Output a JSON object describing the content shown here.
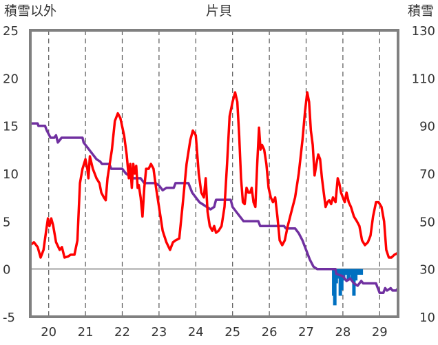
{
  "chart_data": {
    "type": "line",
    "title": "片貝",
    "left_axis_label": "積雪以外",
    "right_axis_label": "積雪",
    "x_ticks": [
      "20",
      "21",
      "22",
      "23",
      "24",
      "25",
      "26",
      "27",
      "28",
      "29"
    ],
    "x_range": [
      19.5,
      29.5
    ],
    "ylim_left": [
      -5,
      25
    ],
    "ylim_right": [
      10,
      130
    ],
    "yticks_left": [
      -5,
      0,
      5,
      10,
      15,
      20,
      25
    ],
    "yticks_right": [
      10,
      30,
      50,
      70,
      90,
      110,
      130
    ],
    "grid": "vertical dashed at each day",
    "colors": {
      "temperature": "#ff0000",
      "snow_depth": "#7030a0",
      "snowfall": "#0070c0",
      "frame": "#808080"
    },
    "series": [
      {
        "axis": "left",
        "color": "#ff0000",
        "points": [
          [
            19.5,
            2.5
          ],
          [
            19.6,
            2.8
          ],
          [
            19.7,
            2.3
          ],
          [
            19.78,
            1.2
          ],
          [
            19.86,
            2.0
          ],
          [
            19.93,
            4.0
          ],
          [
            19.98,
            5.3
          ],
          [
            20.02,
            4.5
          ],
          [
            20.07,
            5.3
          ],
          [
            20.12,
            4.6
          ],
          [
            20.2,
            2.8
          ],
          [
            20.3,
            2.0
          ],
          [
            20.36,
            2.3
          ],
          [
            20.43,
            1.2
          ],
          [
            20.52,
            1.3
          ],
          [
            20.6,
            1.5
          ],
          [
            20.7,
            1.5
          ],
          [
            20.78,
            3.0
          ],
          [
            20.85,
            9.0
          ],
          [
            20.92,
            10.5
          ],
          [
            21.0,
            11.5
          ],
          [
            21.05,
            10.5
          ],
          [
            21.08,
            9.5
          ],
          [
            21.12,
            11.8
          ],
          [
            21.2,
            10.5
          ],
          [
            21.3,
            9.5
          ],
          [
            21.38,
            9.0
          ],
          [
            21.43,
            8.0
          ],
          [
            21.5,
            7.5
          ],
          [
            21.55,
            7.2
          ],
          [
            21.6,
            9.5
          ],
          [
            21.66,
            11.0
          ],
          [
            21.72,
            12.5
          ],
          [
            21.8,
            15.5
          ],
          [
            21.88,
            16.3
          ],
          [
            21.95,
            15.8
          ],
          [
            22.05,
            14.0
          ],
          [
            22.12,
            12.0
          ],
          [
            22.18,
            9.5
          ],
          [
            22.22,
            11.0
          ],
          [
            22.26,
            8.5
          ],
          [
            22.3,
            11.0
          ],
          [
            22.34,
            10.0
          ],
          [
            22.38,
            10.8
          ],
          [
            22.42,
            8.5
          ],
          [
            22.45,
            8.8
          ],
          [
            22.5,
            7.5
          ],
          [
            22.55,
            5.5
          ],
          [
            22.6,
            8.5
          ],
          [
            22.65,
            10.5
          ],
          [
            22.72,
            10.5
          ],
          [
            22.78,
            11.0
          ],
          [
            22.85,
            10.5
          ],
          [
            22.92,
            8.5
          ],
          [
            23.0,
            6.5
          ],
          [
            23.1,
            4.0
          ],
          [
            23.2,
            2.8
          ],
          [
            23.3,
            2.0
          ],
          [
            23.38,
            2.8
          ],
          [
            23.45,
            3.0
          ],
          [
            23.55,
            3.2
          ],
          [
            23.65,
            7.0
          ],
          [
            23.75,
            11.0
          ],
          [
            23.85,
            13.5
          ],
          [
            23.92,
            14.5
          ],
          [
            24.0,
            14.0
          ],
          [
            24.08,
            10.0
          ],
          [
            24.15,
            8.0
          ],
          [
            24.22,
            7.5
          ],
          [
            24.27,
            9.5
          ],
          [
            24.32,
            6.0
          ],
          [
            24.38,
            4.5
          ],
          [
            24.45,
            4.0
          ],
          [
            24.5,
            4.5
          ],
          [
            24.55,
            3.8
          ],
          [
            24.62,
            4.0
          ],
          [
            24.7,
            4.5
          ],
          [
            24.78,
            6.5
          ],
          [
            24.85,
            11.0
          ],
          [
            24.92,
            16.0
          ],
          [
            25.0,
            17.5
          ],
          [
            25.07,
            18.5
          ],
          [
            25.13,
            17.5
          ],
          [
            25.18,
            14.0
          ],
          [
            25.23,
            9.5
          ],
          [
            25.28,
            7.0
          ],
          [
            25.33,
            6.8
          ],
          [
            25.38,
            8.5
          ],
          [
            25.43,
            8.0
          ],
          [
            25.48,
            8.0
          ],
          [
            25.52,
            8.5
          ],
          [
            25.57,
            7.0
          ],
          [
            25.62,
            6.5
          ],
          [
            25.67,
            11.0
          ],
          [
            25.72,
            14.8
          ],
          [
            25.76,
            12.5
          ],
          [
            25.8,
            13.0
          ],
          [
            25.86,
            12.5
          ],
          [
            25.92,
            11.0
          ],
          [
            25.98,
            8.5
          ],
          [
            26.04,
            7.5
          ],
          [
            26.1,
            7.0
          ],
          [
            26.16,
            7.5
          ],
          [
            26.22,
            5.5
          ],
          [
            26.28,
            3.0
          ],
          [
            26.35,
            2.5
          ],
          [
            26.42,
            3.0
          ],
          [
            26.5,
            4.5
          ],
          [
            26.6,
            6.0
          ],
          [
            26.7,
            7.5
          ],
          [
            26.8,
            10.0
          ],
          [
            26.9,
            13.5
          ],
          [
            26.97,
            16.5
          ],
          [
            27.03,
            18.5
          ],
          [
            27.08,
            17.5
          ],
          [
            27.13,
            14.5
          ],
          [
            27.18,
            13.0
          ],
          [
            27.23,
            9.8
          ],
          [
            27.28,
            11.0
          ],
          [
            27.33,
            12.0
          ],
          [
            27.38,
            11.5
          ],
          [
            27.43,
            9.5
          ],
          [
            27.48,
            8.0
          ],
          [
            27.53,
            6.5
          ],
          [
            27.58,
            7.0
          ],
          [
            27.63,
            7.2
          ],
          [
            27.68,
            6.8
          ],
          [
            27.73,
            7.5
          ],
          [
            27.8,
            7.0
          ],
          [
            27.86,
            9.5
          ],
          [
            27.9,
            9.0
          ],
          [
            27.95,
            8.0
          ],
          [
            28.0,
            7.5
          ],
          [
            28.05,
            7.0
          ],
          [
            28.1,
            8.0
          ],
          [
            28.16,
            7.0
          ],
          [
            28.22,
            6.5
          ],
          [
            28.3,
            5.5
          ],
          [
            28.38,
            5.0
          ],
          [
            28.45,
            4.5
          ],
          [
            28.52,
            3.0
          ],
          [
            28.6,
            2.5
          ],
          [
            28.68,
            2.8
          ],
          [
            28.75,
            3.5
          ],
          [
            28.82,
            5.5
          ],
          [
            28.9,
            7.0
          ],
          [
            28.97,
            7.0
          ],
          [
            29.05,
            6.5
          ],
          [
            29.12,
            5.0
          ],
          [
            29.18,
            2.0
          ],
          [
            29.25,
            1.2
          ],
          [
            29.32,
            1.2
          ],
          [
            29.4,
            1.5
          ],
          [
            29.5,
            1.7
          ]
        ]
      },
      {
        "axis": "right",
        "color": "#7030a0",
        "points": [
          [
            19.5,
            91
          ],
          [
            19.7,
            91
          ],
          [
            19.72,
            90
          ],
          [
            19.9,
            90
          ],
          [
            19.95,
            88
          ],
          [
            20.05,
            85
          ],
          [
            20.15,
            85
          ],
          [
            20.2,
            86
          ],
          [
            20.25,
            83
          ],
          [
            20.3,
            84
          ],
          [
            20.35,
            85
          ],
          [
            20.92,
            85
          ],
          [
            20.95,
            83
          ],
          [
            21.0,
            82
          ],
          [
            21.1,
            80
          ],
          [
            21.2,
            78
          ],
          [
            21.3,
            76
          ],
          [
            21.4,
            75
          ],
          [
            21.45,
            74
          ],
          [
            21.65,
            74
          ],
          [
            21.7,
            72
          ],
          [
            22.0,
            72
          ],
          [
            22.1,
            70
          ],
          [
            22.2,
            69
          ],
          [
            22.3,
            68
          ],
          [
            22.5,
            68
          ],
          [
            22.55,
            67
          ],
          [
            22.6,
            66
          ],
          [
            22.9,
            66
          ],
          [
            23.0,
            65
          ],
          [
            23.05,
            64
          ],
          [
            23.1,
            63
          ],
          [
            23.2,
            64
          ],
          [
            23.4,
            64
          ],
          [
            23.45,
            66
          ],
          [
            23.8,
            66
          ],
          [
            23.85,
            64
          ],
          [
            23.9,
            62
          ],
          [
            24.0,
            60
          ],
          [
            24.1,
            58
          ],
          [
            24.2,
            57
          ],
          [
            24.3,
            56
          ],
          [
            24.4,
            55
          ],
          [
            24.5,
            56
          ],
          [
            24.55,
            59
          ],
          [
            24.95,
            59
          ],
          [
            25.0,
            56
          ],
          [
            25.1,
            54
          ],
          [
            25.2,
            52
          ],
          [
            25.3,
            50
          ],
          [
            25.7,
            50
          ],
          [
            25.75,
            48
          ],
          [
            26.4,
            48
          ],
          [
            26.45,
            47
          ],
          [
            26.7,
            47
          ],
          [
            26.8,
            45
          ],
          [
            26.9,
            42
          ],
          [
            27.0,
            38
          ],
          [
            27.1,
            34
          ],
          [
            27.2,
            31
          ],
          [
            27.3,
            30
          ],
          [
            27.8,
            30
          ],
          [
            27.82,
            28
          ],
          [
            28.0,
            27
          ],
          [
            28.1,
            25
          ],
          [
            28.2,
            26
          ],
          [
            28.3,
            24
          ],
          [
            28.4,
            23
          ],
          [
            28.5,
            25
          ],
          [
            28.55,
            24
          ],
          [
            28.9,
            24
          ],
          [
            28.95,
            22
          ],
          [
            29.0,
            20
          ],
          [
            29.1,
            20
          ],
          [
            29.15,
            22
          ],
          [
            29.2,
            21
          ],
          [
            29.3,
            22
          ],
          [
            29.35,
            21
          ],
          [
            29.45,
            21
          ],
          [
            29.5,
            22
          ]
        ]
      }
    ],
    "bars": {
      "axis": "left",
      "color": "#0070c0",
      "items": [
        [
          27.75,
          -2.8
        ],
        [
          27.78,
          -3.8
        ],
        [
          27.82,
          -1.5
        ],
        [
          27.88,
          -1.0
        ],
        [
          27.93,
          -2.8
        ],
        [
          27.97,
          -2.2
        ],
        [
          28.02,
          -1.2
        ],
        [
          28.06,
          -0.6
        ],
        [
          28.1,
          -0.6
        ],
        [
          28.15,
          -1.2
        ],
        [
          28.2,
          -0.6
        ],
        [
          28.25,
          -1.2
        ],
        [
          28.3,
          -2.8
        ],
        [
          28.35,
          -1.2
        ],
        [
          28.4,
          -0.6
        ],
        [
          28.45,
          -0.6
        ],
        [
          28.5,
          -0.6
        ]
      ]
    }
  }
}
